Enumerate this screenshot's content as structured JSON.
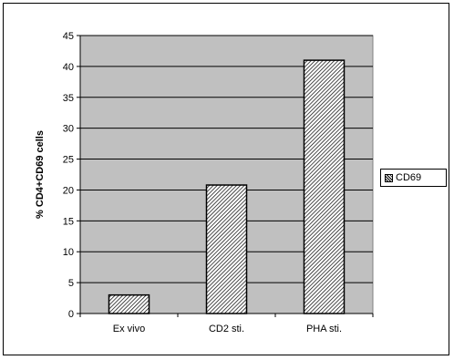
{
  "chart_data": {
    "type": "bar",
    "categories": [
      "Ex vivo",
      "CD2 sti.",
      "PHA sti."
    ],
    "series": [
      {
        "name": "CD69",
        "values": [
          3,
          20.8,
          41
        ]
      }
    ],
    "title": "",
    "xlabel": "",
    "ylabel": "% CD4+CD69 cells",
    "ylim": [
      0,
      45
    ],
    "yticks": [
      0,
      5,
      10,
      15,
      20,
      25,
      30,
      35,
      40,
      45
    ],
    "grid": true,
    "legend_placement": "right",
    "plot_background": "#c0c0c0",
    "bar_pattern": "diagonal-hatch"
  }
}
